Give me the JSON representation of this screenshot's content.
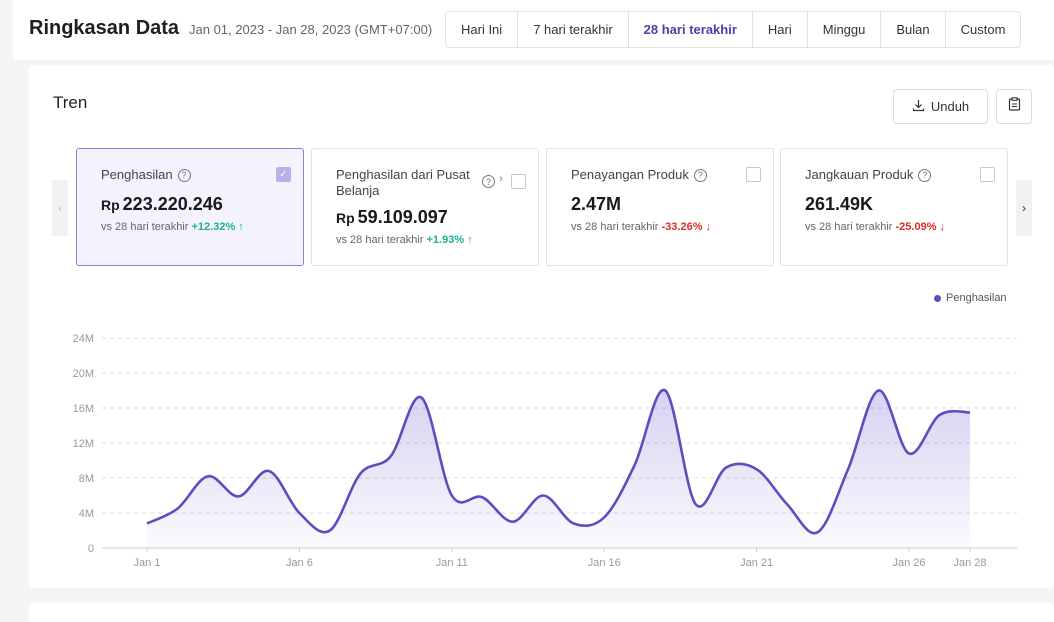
{
  "header": {
    "title": "Ringkasan Data",
    "date_range": "Jan 01, 2023 - Jan 28, 2023 (GMT+07:00)",
    "tabs": [
      {
        "label": "Hari Ini",
        "active": false
      },
      {
        "label": "7 hari terakhir",
        "active": false
      },
      {
        "label": "28 hari terakhir",
        "active": true
      },
      {
        "label": "Hari",
        "active": false
      },
      {
        "label": "Minggu",
        "active": false
      },
      {
        "label": "Bulan",
        "active": false
      },
      {
        "label": "Custom",
        "active": false
      }
    ]
  },
  "trend": {
    "title": "Tren",
    "download_label": "Unduh",
    "download_icon": "download-icon",
    "clipboard_icon": "clipboard-icon"
  },
  "metrics": [
    {
      "label": "Penghasilan",
      "currency": "Rp",
      "value": "223.220.246",
      "compare": "vs 28 hari terakhir",
      "change": "+12.32%",
      "direction": "up",
      "checked": true
    },
    {
      "label": "Penghasilan dari Pusat Belanja",
      "currency": "Rp",
      "value": "59.109.097",
      "compare": "vs 28 hari terakhir",
      "change": "+1.93%",
      "direction": "up",
      "checked": false
    },
    {
      "label": "Penayangan Produk",
      "currency": "",
      "value": "2.47M",
      "compare": "vs 28 hari terakhir",
      "change": "-33.26%",
      "direction": "down",
      "checked": false
    },
    {
      "label": "Jangkauan Produk",
      "currency": "",
      "value": "261.49K",
      "compare": "vs 28 hari terakhir",
      "change": "-25.09%",
      "direction": "down",
      "checked": false
    }
  ],
  "colors": {
    "accent": "#5b4ebf",
    "up": "#1ab394",
    "down": "#d93025"
  },
  "chart_data": {
    "type": "area",
    "series": [
      {
        "name": "Penghasilan",
        "color": "#5b4ebf",
        "values": [
          2.8,
          4.5,
          8.2,
          5.9,
          8.8,
          4.0,
          2.0,
          8.5,
          10.5,
          17.2,
          6.0,
          5.8,
          3.0,
          6.0,
          2.8,
          3.5,
          9.5,
          18.0,
          5.0,
          9.2,
          9.0,
          5.0,
          1.8,
          9.0,
          18.0,
          10.8,
          15.2,
          15.5
        ]
      }
    ],
    "x_labels": [
      {
        "day": 1,
        "label": "Jan 1"
      },
      {
        "day": 6,
        "label": "Jan 6"
      },
      {
        "day": 11,
        "label": "Jan 11"
      },
      {
        "day": 16,
        "label": "Jan 16"
      },
      {
        "day": 21,
        "label": "Jan 21"
      },
      {
        "day": 26,
        "label": "Jan 26"
      },
      {
        "day": 28,
        "label": "Jan 28"
      }
    ],
    "y_ticks": [
      {
        "value": 0,
        "label": "0"
      },
      {
        "value": 4,
        "label": "4M"
      },
      {
        "value": 8,
        "label": "8M"
      },
      {
        "value": 12,
        "label": "12M"
      },
      {
        "value": 16,
        "label": "16M"
      },
      {
        "value": 20,
        "label": "20M"
      },
      {
        "value": 24,
        "label": "24M"
      }
    ],
    "ylim": [
      0,
      24
    ],
    "legend": "Penghasilan",
    "legend_position": "top-right",
    "grid": true
  }
}
